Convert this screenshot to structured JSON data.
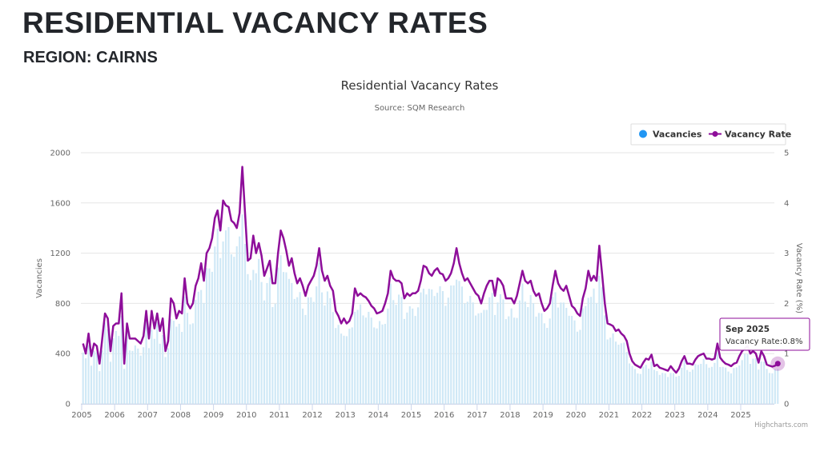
{
  "header": {
    "title": "RESIDENTIAL VACANCY RATES",
    "subtitle": "REGION: CAIRNS"
  },
  "chart_data": {
    "type": "bar+line",
    "title": "Residential Vacancy Rates",
    "subtitle": "Source: SQM Research",
    "credits": "Highcharts.com",
    "x_start": "Jan 2005",
    "x_end": "Sep 2025",
    "x_ticks": [
      "2005",
      "2006",
      "2007",
      "2008",
      "2009",
      "2010",
      "2011",
      "2012",
      "2013",
      "2014",
      "2015",
      "2016",
      "2017",
      "2018",
      "2019",
      "2020",
      "2021",
      "2022",
      "2023",
      "2024",
      "2025"
    ],
    "y_left": {
      "label": "Vacancies",
      "ticks": [
        "0",
        "400",
        "800",
        "1200",
        "1600",
        "2000"
      ],
      "min": 0,
      "max": 2000
    },
    "y_right": {
      "label": "Vacancy Rate (%)",
      "ticks": [
        "0",
        "1",
        "2",
        "3",
        "4",
        "5"
      ],
      "min": 0,
      "max": 5
    },
    "grid": true,
    "legend": {
      "placement": "top-right",
      "items": [
        {
          "name": "Vacancies",
          "color": "#2196f3",
          "symbol": "circle"
        },
        {
          "name": "Vacancy Rate",
          "color": "#8e0e9a",
          "symbol": "line-marker"
        }
      ]
    },
    "series": [
      {
        "name": "Vacancy Rate",
        "type": "line",
        "unit": "%",
        "color": "#8e0e9a",
        "values": [
          1.2,
          1.0,
          1.4,
          0.95,
          1.2,
          1.15,
          0.8,
          1.3,
          1.8,
          1.7,
          1.05,
          1.55,
          1.6,
          1.6,
          2.2,
          0.8,
          1.6,
          1.3,
          1.3,
          1.3,
          1.25,
          1.2,
          1.35,
          1.85,
          1.3,
          1.85,
          1.5,
          1.8,
          1.45,
          1.7,
          1.05,
          1.25,
          2.1,
          2.0,
          1.7,
          1.85,
          1.8,
          2.5,
          2.0,
          1.9,
          2.0,
          2.35,
          2.5,
          2.8,
          2.45,
          3.0,
          3.1,
          3.3,
          3.7,
          3.85,
          3.45,
          4.05,
          3.95,
          3.92,
          3.65,
          3.6,
          3.5,
          3.8,
          4.72,
          3.8,
          2.85,
          2.9,
          3.35,
          3.0,
          3.2,
          2.95,
          2.55,
          2.7,
          2.85,
          2.4,
          2.4,
          3.0,
          3.45,
          3.3,
          3.05,
          2.75,
          2.9,
          2.6,
          2.4,
          2.5,
          2.35,
          2.15,
          2.35,
          2.45,
          2.55,
          2.75,
          3.1,
          2.65,
          2.45,
          2.55,
          2.35,
          2.25,
          1.85,
          1.75,
          1.6,
          1.7,
          1.6,
          1.65,
          1.8,
          2.3,
          2.15,
          2.2,
          2.15,
          2.12,
          2.05,
          1.95,
          1.9,
          1.8,
          1.82,
          1.85,
          2.0,
          2.2,
          2.65,
          2.5,
          2.45,
          2.45,
          2.4,
          2.1,
          2.2,
          2.15,
          2.2,
          2.2,
          2.25,
          2.45,
          2.75,
          2.72,
          2.6,
          2.55,
          2.65,
          2.7,
          2.6,
          2.58,
          2.45,
          2.5,
          2.6,
          2.8,
          3.1,
          2.8,
          2.6,
          2.45,
          2.5,
          2.4,
          2.3,
          2.2,
          2.15,
          2.0,
          2.2,
          2.35,
          2.45,
          2.45,
          2.15,
          2.5,
          2.45,
          2.35,
          2.1,
          2.1,
          2.1,
          2.0,
          2.15,
          2.4,
          2.65,
          2.45,
          2.4,
          2.45,
          2.25,
          2.15,
          2.2,
          2.0,
          1.85,
          1.9,
          2.0,
          2.35,
          2.65,
          2.4,
          2.3,
          2.25,
          2.35,
          2.15,
          1.95,
          1.9,
          1.8,
          1.75,
          2.1,
          2.3,
          2.65,
          2.45,
          2.55,
          2.45,
          3.15,
          2.6,
          2.0,
          1.6,
          1.58,
          1.55,
          1.45,
          1.48,
          1.4,
          1.35,
          1.25,
          1.0,
          0.85,
          0.78,
          0.75,
          0.72,
          0.82,
          0.9,
          0.88,
          0.98,
          0.75,
          0.78,
          0.72,
          0.7,
          0.68,
          0.66,
          0.75,
          0.68,
          0.62,
          0.7,
          0.85,
          0.95,
          0.8,
          0.8,
          0.78,
          0.88,
          0.95,
          0.98,
          1.0,
          0.9,
          0.9,
          0.88,
          0.9,
          1.2,
          0.92,
          0.85,
          0.8,
          0.78,
          0.75,
          0.8,
          0.82,
          0.95,
          1.05,
          1.1,
          1.15,
          1.0,
          1.05,
          1.0,
          0.82,
          1.05,
          0.95,
          0.78,
          0.76,
          0.74,
          0.76,
          0.8
        ]
      },
      {
        "name": "Vacancies",
        "type": "column",
        "color": "#cfe8f6",
        "derived_from_rate": true
      }
    ],
    "tooltip": {
      "title": "Sep 2025",
      "label": "Vacancy Rate",
      "value": "0.8%"
    }
  }
}
